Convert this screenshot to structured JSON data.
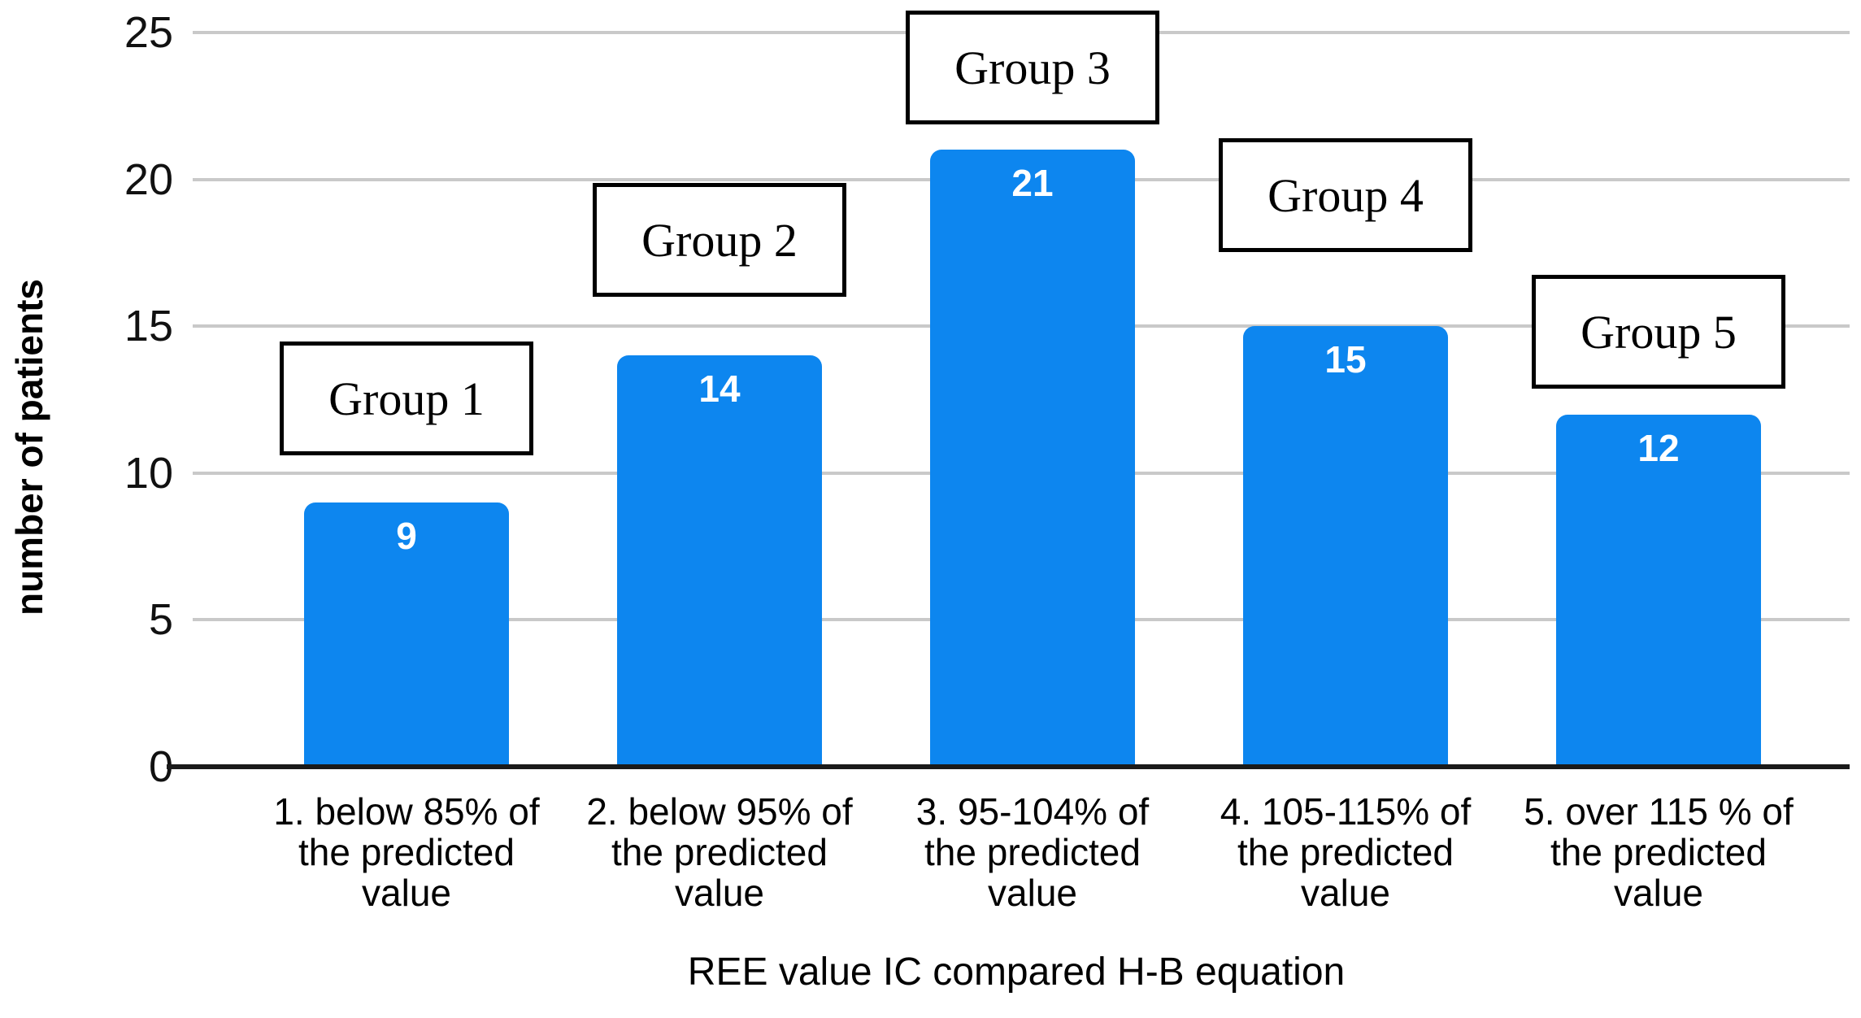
{
  "chart_data": {
    "type": "bar",
    "title": "",
    "xlabel": "REE value IC compared H-B equation",
    "ylabel": "number of patients",
    "categories": [
      "1. below 85% of\nthe predicted\nvalue",
      "2. below 95% of\nthe predicted\nvalue",
      "3. 95-104% of\nthe predicted\nvalue",
      "4. 105-115% of\nthe predicted\nvalue",
      "5. over 115 % of\nthe predicted\nvalue"
    ],
    "values": [
      9,
      14,
      21,
      15,
      12
    ],
    "data_labels": [
      "9",
      "14",
      "21",
      "15",
      "12"
    ],
    "annotations": [
      {
        "label": "Group 1"
      },
      {
        "label": "Group 2"
      },
      {
        "label": "Group 3"
      },
      {
        "label": "Group 4"
      },
      {
        "label": "Group 5"
      }
    ],
    "ylim": [
      0,
      25
    ],
    "yticks": [
      25,
      20,
      15,
      10,
      5,
      0
    ],
    "grid": true,
    "legend": "none",
    "colors": {
      "bar": "#0d86ef",
      "value_label": "#ffffff",
      "gridline": "#c9c9c9",
      "axis_line": "#1a1a1a",
      "text": "#000000",
      "annotation_border": "#000000",
      "annotation_bg": "#ffffff",
      "background": "#ffffff"
    }
  }
}
